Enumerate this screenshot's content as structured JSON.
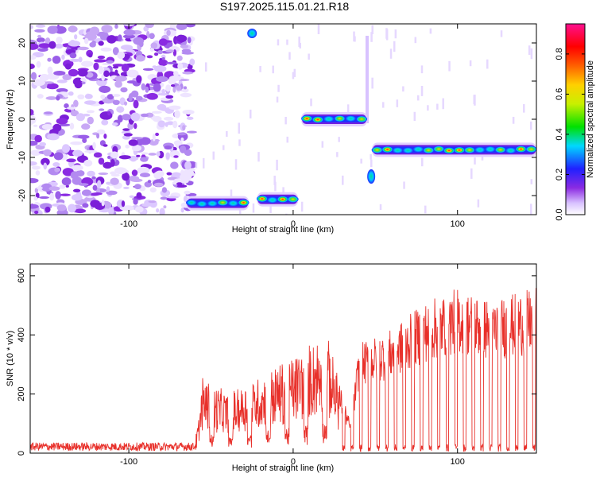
{
  "figure": {
    "title": "S197.2025.115.01.21.R18"
  },
  "chart_data": [
    {
      "type": "heatmap",
      "xlabel": "Height of straight line (km)",
      "ylabel": "Frequency (Hz)",
      "xlim": [
        -160,
        148
      ],
      "ylim": [
        -25,
        25
      ],
      "x_ticks": [
        -100,
        0,
        100
      ],
      "y_ticks": [
        -20,
        -10,
        0,
        10,
        20
      ],
      "colorbar": {
        "label": "Normalized spectral amplitude",
        "range": [
          0,
          0.95
        ],
        "ticks": [
          0.0,
          0.2,
          0.4,
          0.6,
          0.8
        ],
        "colormap": "rainbow (white-violet-blue-cyan-green-yellow-red-magenta)"
      },
      "regions": [
        {
          "description": "broadband noise",
          "x_range": [
            -160,
            -65
          ],
          "y_range": [
            -25,
            25
          ]
        },
        {
          "description": "tone",
          "x_range": [
            -65,
            -27
          ],
          "frequency": -22
        },
        {
          "description": "tone",
          "x_range": [
            -22,
            3
          ],
          "frequency": -21
        },
        {
          "description": "tone",
          "x_range": [
            5,
            45
          ],
          "frequency": 0
        },
        {
          "description": "tone",
          "x_range": [
            48,
            148
          ],
          "frequency": -8
        }
      ],
      "grid": false
    },
    {
      "type": "line",
      "xlabel": "Height of straight line (km)",
      "ylabel": "SNR (10 * v/v)",
      "xlim": [
        -160,
        148
      ],
      "ylim": [
        0,
        640
      ],
      "x_ticks": [
        -100,
        0,
        100
      ],
      "y_ticks": [
        0,
        200,
        400,
        600
      ],
      "series_color": "#e8302a",
      "envelope": [
        {
          "x": -160,
          "y": 18
        },
        {
          "x": -60,
          "y": 18
        },
        {
          "x": -58,
          "y": 80
        },
        {
          "x": -55,
          "y": 250
        },
        {
          "x": -40,
          "y": 190
        },
        {
          "x": -20,
          "y": 250
        },
        {
          "x": 0,
          "y": 320
        },
        {
          "x": 20,
          "y": 400
        },
        {
          "x": 35,
          "y": 100
        },
        {
          "x": 40,
          "y": 370
        },
        {
          "x": 60,
          "y": 420
        },
        {
          "x": 80,
          "y": 510
        },
        {
          "x": 100,
          "y": 560
        },
        {
          "x": 120,
          "y": 520
        },
        {
          "x": 148,
          "y": 560
        }
      ],
      "grid": false
    }
  ]
}
